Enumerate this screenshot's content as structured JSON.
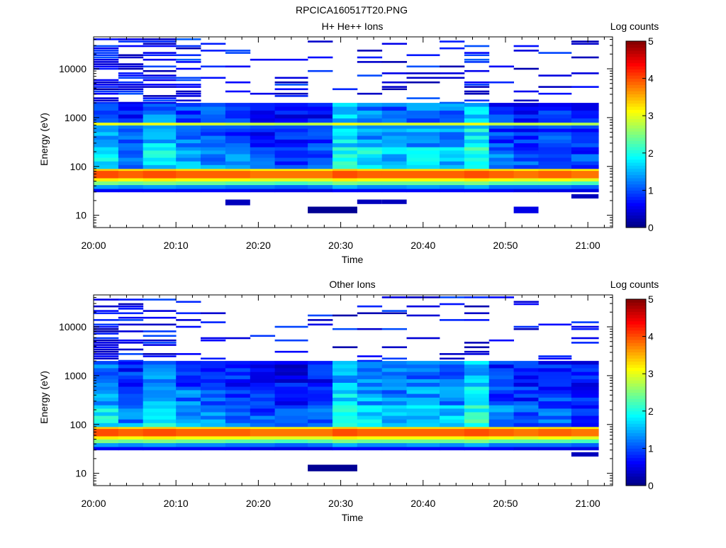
{
  "figure_title": "RPCICA160517T20.PNG",
  "chart_data": [
    {
      "type": "heatmap",
      "title": "H+ He++ Ions",
      "xlabel": "Time",
      "ylabel": "Energy (eV)",
      "yscale": "log",
      "xlim": [
        "20:00",
        "21:03"
      ],
      "ylim": [
        5.6,
        45000
      ],
      "x_ticks": [
        "20:00",
        "20:10",
        "20:20",
        "20:30",
        "20:40",
        "20:50",
        "21:00"
      ],
      "y_ticks": [
        {
          "value": 10,
          "label": "10"
        },
        {
          "value": 100,
          "label": "100"
        },
        {
          "value": 1000,
          "label": "1000"
        },
        {
          "value": 10000,
          "label": "10000"
        }
      ],
      "colorbar": {
        "label": "Log counts",
        "range": [
          0,
          5
        ],
        "ticks": [
          "0",
          "1",
          "2",
          "3",
          "4",
          "5"
        ],
        "colormap": "jet"
      },
      "time_bins_start": [
        "20:00",
        "20:03",
        "20:06",
        "20:10",
        "20:13",
        "20:16",
        "20:19",
        "20:22",
        "20:26",
        "20:29",
        "20:32",
        "20:35",
        "20:38",
        "20:42",
        "20:45",
        "20:48",
        "20:51",
        "20:54",
        "20:58"
      ],
      "band_bounds_eV": [
        [
          30,
          35
        ],
        [
          35,
          42
        ],
        [
          42,
          50
        ],
        [
          50,
          58
        ],
        [
          58,
          82
        ],
        [
          82,
          90
        ],
        [
          90,
          250
        ],
        [
          250,
          600
        ],
        [
          600,
          700
        ],
        [
          700,
          800
        ],
        [
          800,
          2000
        ]
      ],
      "band_values": [
        [
          0.6,
          1.4,
          2.5,
          3.2,
          4.0,
          3.4,
          1.9,
          1.5,
          1.4,
          3.0,
          1.2
        ],
        [
          0.6,
          1.3,
          2.4,
          3.1,
          3.9,
          3.3,
          1.3,
          1.1,
          1.2,
          2.9,
          0.8
        ],
        [
          0.6,
          1.4,
          2.5,
          3.2,
          4.0,
          3.4,
          1.8,
          1.6,
          1.4,
          3.0,
          1.2
        ],
        [
          0.6,
          1.3,
          2.4,
          3.1,
          3.9,
          3.3,
          1.4,
          1.2,
          1.2,
          2.9,
          0.9
        ],
        [
          0.6,
          1.3,
          2.4,
          3.1,
          3.9,
          3.3,
          1.3,
          1.0,
          1.1,
          2.9,
          1.0
        ],
        [
          0.6,
          1.2,
          2.3,
          3.1,
          3.9,
          3.3,
          1.2,
          0.9,
          1.1,
          2.8,
          0.8
        ],
        [
          0.5,
          1.2,
          2.3,
          3.0,
          3.8,
          3.2,
          1.0,
          0.8,
          1.0,
          2.8,
          0.7
        ],
        [
          0.5,
          1.1,
          2.2,
          3.0,
          3.8,
          3.2,
          0.9,
          0.7,
          1.0,
          2.7,
          0.6
        ],
        [
          0.5,
          1.2,
          2.3,
          3.0,
          3.8,
          3.2,
          1.1,
          0.9,
          1.0,
          2.8,
          0.7
        ],
        [
          0.6,
          1.5,
          2.5,
          3.2,
          4.0,
          3.4,
          2.0,
          1.7,
          1.5,
          3.0,
          1.6
        ],
        [
          0.6,
          1.3,
          2.4,
          3.1,
          3.9,
          3.3,
          1.8,
          1.4,
          1.3,
          2.9,
          1.2
        ],
        [
          0.6,
          1.3,
          2.4,
          3.1,
          3.9,
          3.3,
          1.6,
          1.3,
          1.3,
          2.9,
          1.1
        ],
        [
          0.6,
          1.4,
          2.4,
          3.1,
          3.9,
          3.3,
          1.7,
          1.4,
          1.3,
          2.9,
          1.2
        ],
        [
          0.6,
          1.3,
          2.4,
          3.1,
          3.9,
          3.3,
          1.6,
          1.3,
          1.3,
          2.9,
          1.2
        ],
        [
          0.6,
          1.5,
          2.5,
          3.2,
          4.0,
          3.4,
          2.0,
          1.8,
          1.5,
          3.0,
          1.7
        ],
        [
          0.6,
          1.2,
          2.3,
          3.1,
          3.9,
          3.3,
          1.2,
          0.9,
          1.1,
          2.8,
          0.8
        ],
        [
          0.5,
          1.2,
          2.3,
          3.0,
          3.8,
          3.2,
          1.0,
          0.8,
          1.0,
          2.8,
          0.7
        ],
        [
          0.5,
          1.2,
          2.3,
          3.1,
          3.9,
          3.3,
          1.1,
          0.9,
          1.1,
          2.8,
          0.8
        ],
        [
          0.5,
          1.1,
          2.2,
          3.0,
          3.8,
          3.2,
          0.9,
          0.8,
          1.0,
          2.7,
          0.7
        ]
      ],
      "sparse_band_eV": [
        2000,
        42000
      ],
      "sparse_density": [
        0.75,
        0.6,
        0.6,
        0.55,
        0.25,
        0.2,
        0.12,
        0.15,
        0.12,
        0.15,
        0.3,
        0.22,
        0.2,
        0.18,
        0.45,
        0.15,
        0.18,
        0.1,
        0.15
      ],
      "sparse_value_range": [
        0.2,
        1.1
      ],
      "isolated_cells": [
        {
          "x_bin": 5,
          "energy_range": [
            16,
            21
          ],
          "value": 0.3
        },
        {
          "x_bin": 8,
          "energy_range": [
            11,
            15
          ],
          "value": 0.1
        },
        {
          "x_bin": 9,
          "energy_range": [
            11,
            15
          ],
          "value": 0.1
        },
        {
          "x_bin": 10,
          "energy_range": [
            17,
            21
          ],
          "value": 0.3
        },
        {
          "x_bin": 11,
          "energy_range": [
            17,
            21
          ],
          "value": 0.3
        },
        {
          "x_bin": 16,
          "energy_range": [
            11,
            15
          ],
          "value": 0.5
        },
        {
          "x_bin": 18,
          "energy_range": [
            22,
            27
          ],
          "value": 0.3
        }
      ]
    },
    {
      "type": "heatmap",
      "title": "Other Ions",
      "xlabel": "Time",
      "ylabel": "Energy (eV)",
      "yscale": "log",
      "xlim": [
        "20:00",
        "21:03"
      ],
      "ylim": [
        5.6,
        45000
      ],
      "x_ticks": [
        "20:00",
        "20:10",
        "20:20",
        "20:30",
        "20:40",
        "20:50",
        "21:00"
      ],
      "y_ticks": [
        {
          "value": 10,
          "label": "10"
        },
        {
          "value": 100,
          "label": "100"
        },
        {
          "value": 1000,
          "label": "1000"
        },
        {
          "value": 10000,
          "label": "10000"
        }
      ],
      "colorbar": {
        "label": "Log counts",
        "range": [
          0,
          5
        ],
        "ticks": [
          "0",
          "1",
          "2",
          "3",
          "4",
          "5"
        ],
        "colormap": "jet"
      },
      "time_bins_start": [
        "20:00",
        "20:03",
        "20:06",
        "20:10",
        "20:13",
        "20:16",
        "20:19",
        "20:22",
        "20:26",
        "20:29",
        "20:32",
        "20:35",
        "20:38",
        "20:42",
        "20:45",
        "20:48",
        "20:51",
        "20:54",
        "20:58"
      ],
      "band_bounds_eV": [
        [
          30,
          35
        ],
        [
          35,
          42
        ],
        [
          42,
          50
        ],
        [
          50,
          58
        ],
        [
          58,
          82
        ],
        [
          82,
          90
        ],
        [
          90,
          250
        ],
        [
          250,
          600
        ],
        [
          600,
          2000
        ]
      ],
      "band_values": [
        [
          0.6,
          1.4,
          2.5,
          3.2,
          4.0,
          3.4,
          1.9,
          1.5,
          1.2
        ],
        [
          0.6,
          1.3,
          2.4,
          3.1,
          3.9,
          3.3,
          1.3,
          1.1,
          0.8
        ],
        [
          0.6,
          1.4,
          2.5,
          3.2,
          4.0,
          3.4,
          1.8,
          1.6,
          1.2
        ],
        [
          0.6,
          1.3,
          2.4,
          3.1,
          3.9,
          3.3,
          1.4,
          1.2,
          0.9
        ],
        [
          0.6,
          1.3,
          2.4,
          3.1,
          3.9,
          3.3,
          1.3,
          1.0,
          0.9
        ],
        [
          0.6,
          1.2,
          2.3,
          3.1,
          3.9,
          3.3,
          1.2,
          0.9,
          0.8
        ],
        [
          0.5,
          1.2,
          2.3,
          3.0,
          3.8,
          3.2,
          1.0,
          0.8,
          0.7
        ],
        [
          0.5,
          1.1,
          2.2,
          3.0,
          3.8,
          3.2,
          0.9,
          0.7,
          0.6
        ],
        [
          0.5,
          1.2,
          2.3,
          3.0,
          3.8,
          3.2,
          1.1,
          0.9,
          0.7
        ],
        [
          0.6,
          1.5,
          2.5,
          3.2,
          4.0,
          3.4,
          2.0,
          1.7,
          1.5
        ],
        [
          0.6,
          1.3,
          2.4,
          3.1,
          3.9,
          3.3,
          1.8,
          1.4,
          1.2
        ],
        [
          0.6,
          1.3,
          2.4,
          3.1,
          3.9,
          3.3,
          1.6,
          1.3,
          1.1
        ],
        [
          0.6,
          1.4,
          2.4,
          3.1,
          3.9,
          3.3,
          1.7,
          1.4,
          1.2
        ],
        [
          0.6,
          1.3,
          2.4,
          3.1,
          3.9,
          3.3,
          1.6,
          1.3,
          1.1
        ],
        [
          0.6,
          1.5,
          2.5,
          3.2,
          4.0,
          3.4,
          2.0,
          1.8,
          1.6
        ],
        [
          0.6,
          1.2,
          2.3,
          3.1,
          3.9,
          3.3,
          1.2,
          0.9,
          0.8
        ],
        [
          0.5,
          1.2,
          2.3,
          3.0,
          3.8,
          3.2,
          1.0,
          0.8,
          0.7
        ],
        [
          0.5,
          1.2,
          2.3,
          3.1,
          3.9,
          3.3,
          1.1,
          0.9,
          0.8
        ],
        [
          0.5,
          1.1,
          2.2,
          3.0,
          3.8,
          3.2,
          0.9,
          0.8,
          0.7
        ]
      ],
      "sparse_band_eV": [
        2000,
        42000
      ],
      "sparse_density": [
        0.75,
        0.4,
        0.4,
        0.3,
        0.15,
        0.12,
        0.08,
        0.1,
        0.1,
        0.1,
        0.15,
        0.12,
        0.12,
        0.12,
        0.3,
        0.12,
        0.1,
        0.12,
        0.1
      ],
      "sparse_value_range": [
        0.2,
        1.0
      ],
      "isolated_cells": [
        {
          "x_bin": 8,
          "energy_range": [
            11,
            15
          ],
          "value": 0.1
        },
        {
          "x_bin": 9,
          "energy_range": [
            11,
            15
          ],
          "value": 0.1
        },
        {
          "x_bin": 18,
          "energy_range": [
            22,
            27
          ],
          "value": 0.3
        }
      ]
    }
  ]
}
